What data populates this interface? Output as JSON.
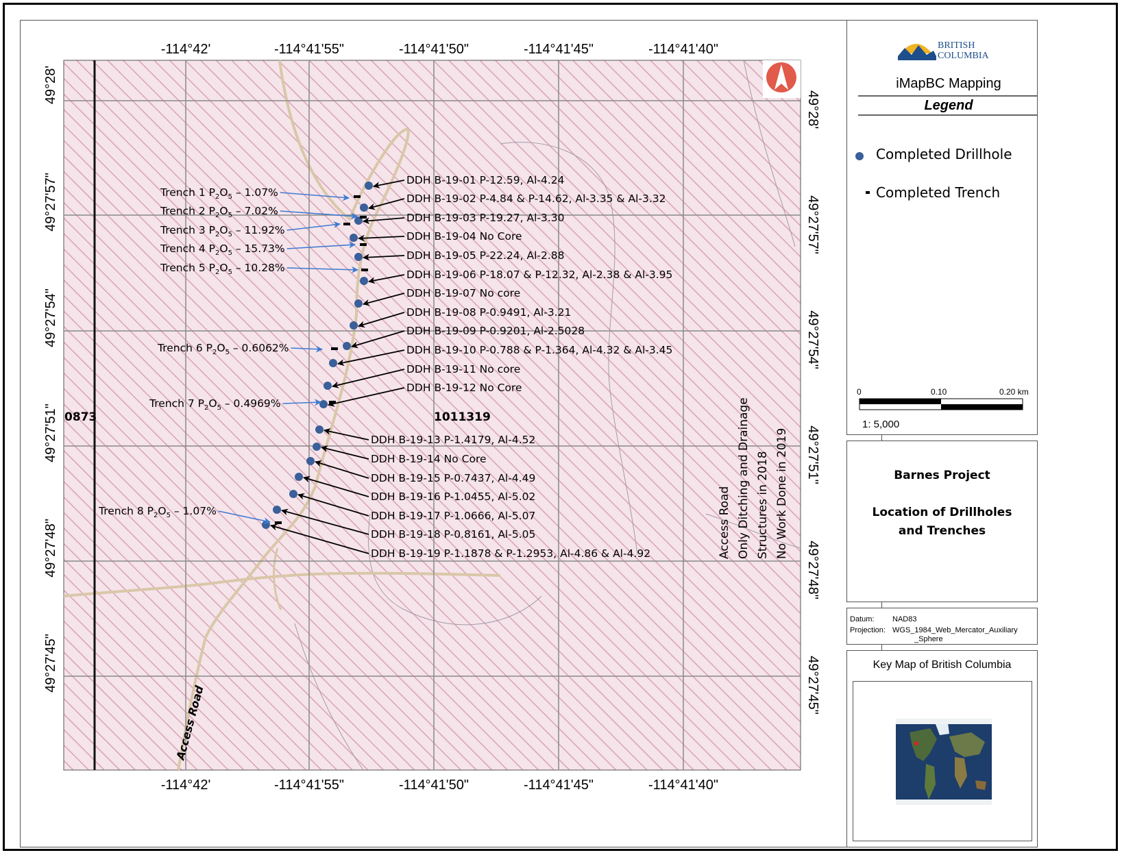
{
  "map": {
    "top_lon_labels": [
      "-114°42'",
      "-114°41'55\"",
      "-114°41'50\"",
      "-114°41'45\"",
      "-114°41'40\""
    ],
    "bottom_lon_labels": [
      "-114°42'",
      "-114°41'55\"",
      "-114°41'50\"",
      "-114°41'45\"",
      "-114°41'40\""
    ],
    "left_lat_labels": [
      "49°28'",
      "49°27'57\"",
      "49°27'54\"",
      "49°27'51\"",
      "49°27'48\"",
      "49°27'45\""
    ],
    "right_lat_labels": [
      "49°28'",
      "49°27'57\"",
      "49°27'54\"",
      "49°27'51\"",
      "49°27'48\"",
      "49°27'45\""
    ],
    "parcel_left": "0873",
    "parcel_center": "1011319",
    "access_road_label": "Access Road",
    "notes": [
      "Access Road",
      "Only Ditching and Drainage",
      "Structures in 2018",
      "No Work Done in 2019"
    ],
    "drillholes": [
      {
        "id": "DDH B-19-01",
        "label": "DDH B-19-01 P-12.59, Al-4.24"
      },
      {
        "id": "DDH B-19-02",
        "label": "DDH B-19-02 P-4.84 & P-14.62, Al-3.35 & Al-3.32"
      },
      {
        "id": "DDH B-19-03",
        "label": "DDH B-19-03 P-19.27, Al-3.30"
      },
      {
        "id": "DDH B-19-04",
        "label": "DDH B-19-04 No Core"
      },
      {
        "id": "DDH B-19-05",
        "label": "DDH B-19-05 P-22.24, Al-2.88"
      },
      {
        "id": "DDH B-19-06",
        "label": "DDH B-19-06 P-18.07 & P-12.32, Al-2.38 & Al-3.95"
      },
      {
        "id": "DDH B-19-07",
        "label": "DDH B-19-07 No core"
      },
      {
        "id": "DDH B-19-08",
        "label": "DDH B-19-08 P-0.9491, Al-3.21"
      },
      {
        "id": "DDH B-19-09",
        "label": "DDH B-19-09 P-0.9201, Al-2.5028"
      },
      {
        "id": "DDH B-19-10",
        "label": "DDH B-19-10 P-0.788 & P-1.364, Al-4.32 & Al-3.45"
      },
      {
        "id": "DDH B-19-11",
        "label": "DDH B-19-11 No core"
      },
      {
        "id": "DDH B-19-12",
        "label": "DDH B-19-12 No Core"
      },
      {
        "id": "DDH B-19-13",
        "label": "DDH B-19-13 P-1.4179, Al-4.52"
      },
      {
        "id": "DDH B-19-14",
        "label": "DDH B-19-14 No Core"
      },
      {
        "id": "DDH B-19-15",
        "label": "DDH B-19-15 P-0.7437, Al-4.49"
      },
      {
        "id": "DDH B-19-16",
        "label": "DDH B-19-16 P-1.0455, Al-5.02"
      },
      {
        "id": "DDH B-19-17",
        "label": "DDH B-19-17  P-1.0666, Al-5.07"
      },
      {
        "id": "DDH B-19-18",
        "label": "DDH B-19-18 P-0.8161, Al-5.05"
      },
      {
        "id": "DDH B-19-19",
        "label": "DDH B-19-19 P-1.1878 & P-1.2953, Al-4.86 & Al-4.92"
      }
    ],
    "trenches": [
      {
        "name": "Trench 1",
        "value": " – 1.07%"
      },
      {
        "name": "Trench 2",
        "value": " – 7.02%"
      },
      {
        "name": "Trench 3",
        "value": " – 11.92%"
      },
      {
        "name": "Trench 4",
        "value": " – 15.73%"
      },
      {
        "name": "Trench 5",
        "value": " – 10.28%"
      },
      {
        "name": "Trench 6",
        "value": " – 0.6062%"
      },
      {
        "name": "Trench 7",
        "value": " – 0.4969%"
      },
      {
        "name": "Trench 8",
        "value": " – 1.07%"
      }
    ],
    "oxide": {
      "p": "P",
      "sub2": "2",
      "o": "O",
      "sub5": "5"
    }
  },
  "legend_panel": {
    "logo_text_1": "BRITISH",
    "logo_text_2": "COLUMBIA",
    "mapping_title": "iMapBC Mapping",
    "legend_title": "Legend",
    "items": [
      {
        "label": "Completed Drillhole",
        "symbol": "dot",
        "color": "#3a5f9a"
      },
      {
        "label": "Completed Trench",
        "symbol": "dash",
        "color": "#000000"
      }
    ],
    "scale_labels": [
      "0",
      "0.10",
      "0.20 km"
    ],
    "scale_ratio": "1: 5,000"
  },
  "title_panel": {
    "project": "Barnes Project",
    "subtitle_1": "Location of Drillholes",
    "subtitle_2": "and Trenches"
  },
  "datum_panel": {
    "datum_label": "Datum:",
    "datum_value": "NAD83",
    "projection_label": "Projection:",
    "projection_value_1": "WGS_1984_Web_Mercator_Auxiliary",
    "projection_value_2": "_Sphere"
  },
  "key_map": {
    "title": "Key Map of British Columbia"
  },
  "colors": {
    "parcel_fill": "#f5e4ea",
    "hatch": "#d9a3b5",
    "road": "#d9c7a8",
    "drillhole": "#3a5f9a",
    "trench_arrow": "#3f7ad1",
    "grid": "#8a8a8a"
  }
}
